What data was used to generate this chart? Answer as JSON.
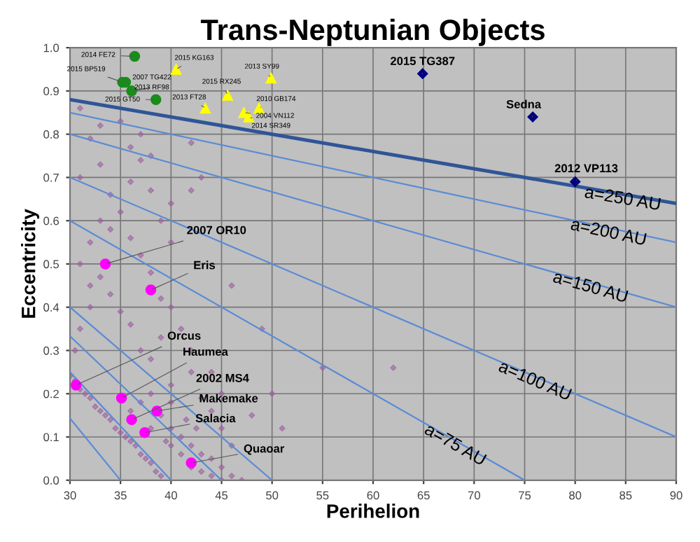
{
  "chart_data": {
    "type": "scatter",
    "title": "Trans-Neptunian Objects",
    "xlabel": "Perihelion",
    "ylabel": "Eccentricity",
    "xlim": [
      30,
      90
    ],
    "xticks": [
      30,
      35,
      40,
      45,
      50,
      55,
      60,
      65,
      70,
      75,
      80,
      85,
      90
    ],
    "ylim": [
      0,
      1.0
    ],
    "yticks": [
      {
        "value": 0,
        "label": "0.0"
      },
      0.1,
      0.2,
      0.3,
      0.4,
      0.5,
      0.6,
      0.7,
      0.8,
      0.9,
      {
        "value": 1.0,
        "label": "1.0"
      }
    ],
    "grid": true,
    "series": [
      {
        "marker": "diamond",
        "color": "#9b5fa0",
        "x": [
          30,
          30.5,
          31,
          31.5,
          32,
          32.5,
          33,
          33.5,
          34,
          34.5,
          35,
          35.5,
          36,
          36.5,
          37,
          37.5,
          38,
          38.5,
          39,
          39,
          40,
          40,
          41,
          41,
          42,
          42,
          43,
          43,
          44,
          44,
          45,
          45,
          46,
          47,
          40,
          41.5,
          42.5,
          38,
          39.5,
          36,
          37,
          38,
          40,
          42,
          43,
          44,
          45,
          46,
          30.5,
          31,
          32,
          32,
          33,
          34,
          35,
          36,
          37,
          38,
          39,
          31,
          32,
          33,
          34,
          35,
          36,
          37,
          38,
          39,
          40,
          41,
          42,
          44,
          45,
          48,
          51,
          31,
          33,
          34,
          36,
          37,
          38,
          39,
          40,
          35,
          37,
          36,
          33,
          31,
          32,
          38,
          40,
          42,
          43,
          42,
          46,
          49,
          55,
          62,
          50
        ],
        "values": [
          0.24,
          0.23,
          0.21,
          0.2,
          0.19,
          0.17,
          0.16,
          0.15,
          0.14,
          0.12,
          0.11,
          0.1,
          0.09,
          0.08,
          0.06,
          0.05,
          0.04,
          0.02,
          0.01,
          0.15,
          0.12,
          0.08,
          0.1,
          0.06,
          0.08,
          0.03,
          0.06,
          0.02,
          0.05,
          0.01,
          0.03,
          0.0,
          0.01,
          0.0,
          0.18,
          0.14,
          0.12,
          0.12,
          0.09,
          0.16,
          0.18,
          0.2,
          0.22,
          0.25,
          0.19,
          0.16,
          0.12,
          0.08,
          0.3,
          0.35,
          0.4,
          0.45,
          0.47,
          0.43,
          0.39,
          0.36,
          0.3,
          0.28,
          0.33,
          0.5,
          0.55,
          0.6,
          0.58,
          0.62,
          0.56,
          0.52,
          0.48,
          0.42,
          0.4,
          0.35,
          0.3,
          0.25,
          0.2,
          0.15,
          0.12,
          0.7,
          0.73,
          0.66,
          0.69,
          0.74,
          0.67,
          0.6,
          0.55,
          0.83,
          0.8,
          0.77,
          0.82,
          0.86,
          0.79,
          0.75,
          0.64,
          0.67,
          0.7,
          0.78,
          0.45,
          0.35,
          0.26,
          0.26,
          0.2
        ]
      },
      {
        "type": "line",
        "color": "#5b8bd6",
        "x": [
          30,
          35
        ],
        "values": [
          0.143,
          0
        ]
      },
      {
        "type": "line",
        "color": "#5b8bd6",
        "x": [
          30,
          40
        ],
        "values": [
          0.25,
          0
        ]
      },
      {
        "type": "line",
        "color": "#5b8bd6",
        "x": [
          30,
          45
        ],
        "values": [
          0.333,
          0
        ]
      },
      {
        "type": "line",
        "color": "#5b8bd6",
        "x": [
          30,
          50
        ],
        "values": [
          0.4,
          0
        ]
      },
      {
        "type": "line",
        "name": "a=75 AU",
        "color": "#5b8bd6",
        "x": [
          30,
          75
        ],
        "values": [
          0.6,
          0
        ]
      },
      {
        "type": "line",
        "name": "a=100 AU",
        "color": "#5b8bd6",
        "x": [
          30,
          90
        ],
        "values": [
          0.7,
          0.1
        ]
      },
      {
        "type": "line",
        "name": "a=150 AU",
        "color": "#5b8bd6",
        "x": [
          30,
          90
        ],
        "values": [
          0.8,
          0.4
        ]
      },
      {
        "type": "line",
        "name": "a=200 AU",
        "color": "#5b8bd6",
        "x": [
          30,
          90
        ],
        "values": [
          0.85,
          0.55
        ]
      },
      {
        "type": "line",
        "name": "a=250 AU",
        "color": "#2f5597",
        "x": [
          30,
          90
        ],
        "values": [
          0.88,
          0.64
        ]
      },
      {
        "marker": "circle",
        "color": "#1a8c1a",
        "x": [
          36.4,
          35.2,
          35.5,
          36.1,
          38.5
        ],
        "values": [
          0.98,
          0.92,
          0.92,
          0.9,
          0.88
        ]
      },
      {
        "marker": "triangle",
        "color": "#ffff00",
        "x": [
          40.5,
          49.9,
          45.6,
          43.4,
          48.7,
          47.2,
          47.7
        ],
        "values": [
          0.95,
          0.93,
          0.89,
          0.86,
          0.86,
          0.85,
          0.84
        ]
      },
      {
        "marker": "diamond",
        "color": "#000080",
        "x": [
          64.9,
          75.8,
          80.0
        ],
        "values": [
          0.94,
          0.84,
          0.69
        ]
      },
      {
        "marker": "circle",
        "color": "#ff00ff",
        "x": [
          33.5,
          38.0,
          30.6,
          35.1,
          36.1,
          38.6,
          37.4,
          42.0
        ],
        "values": [
          0.5,
          0.44,
          0.22,
          0.19,
          0.14,
          0.16,
          0.11,
          0.04
        ]
      }
    ],
    "annotations": [
      {
        "text": "2014 FE72",
        "x": 36.4,
        "y": 0.98
      },
      {
        "text": "2015 BP519",
        "x": 35.2,
        "y": 0.92
      },
      {
        "text": "2007 TG422",
        "x": 35.5,
        "y": 0.92
      },
      {
        "text": "2013 RF98",
        "x": 36.1,
        "y": 0.9
      },
      {
        "text": "2015 GT50",
        "x": 38.5,
        "y": 0.88
      },
      {
        "text": "2015 KG163",
        "x": 40.5,
        "y": 0.95
      },
      {
        "text": "2013 SY99",
        "x": 49.9,
        "y": 0.93
      },
      {
        "text": "2015 RX245",
        "x": 45.6,
        "y": 0.89
      },
      {
        "text": "2013 FT28",
        "x": 43.4,
        "y": 0.86
      },
      {
        "text": "2010 GB174",
        "x": 48.7,
        "y": 0.86
      },
      {
        "text": "2004 VN112",
        "x": 47.2,
        "y": 0.85
      },
      {
        "text": "2014 SR349",
        "x": 47.7,
        "y": 0.84
      },
      {
        "text": "2015 TG387",
        "x": 64.9,
        "y": 0.94
      },
      {
        "text": "Sedna",
        "x": 75.8,
        "y": 0.84
      },
      {
        "text": "2012 VP113",
        "x": 80.0,
        "y": 0.69
      },
      {
        "text": "2007 OR10",
        "x": 33.5,
        "y": 0.5
      },
      {
        "text": "Eris",
        "x": 38.0,
        "y": 0.44
      },
      {
        "text": "Orcus",
        "x": 30.6,
        "y": 0.22
      },
      {
        "text": "Haumea",
        "x": 35.1,
        "y": 0.19
      },
      {
        "text": "2002 MS4",
        "x": 36.1,
        "y": 0.14
      },
      {
        "text": "Makemake",
        "x": 38.6,
        "y": 0.16
      },
      {
        "text": "Salacia",
        "x": 37.4,
        "y": 0.11
      },
      {
        "text": "Quaoar",
        "x": 42.0,
        "y": 0.04
      }
    ]
  }
}
